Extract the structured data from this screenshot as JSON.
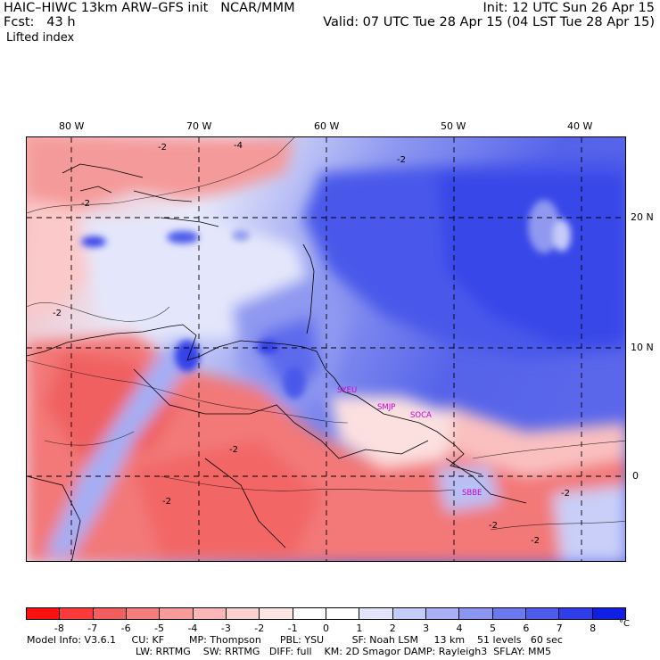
{
  "header": {
    "left_line1": "HAIC–HIWC 13km ARW–GFS init   NCAR/MMM",
    "left_line2": "Fcst:   43 h",
    "left_line3": "Lifted index",
    "right_line1": "Init: 12 UTC Sun 26 Apr 15",
    "right_line2": "Valid: 07 UTC Tue 28 Apr 15 (04 LST Tue 28 Apr 15)"
  },
  "map": {
    "longitude_labels": [
      "80 W",
      "70 W",
      "60 W",
      "50 W",
      "40 W"
    ],
    "latitude_labels": [
      "20 N",
      "10 N",
      "0"
    ],
    "contour_labels": [
      "-2",
      "-4",
      "-2",
      "-2",
      "-2",
      "-2",
      "-2",
      "-2",
      "-2",
      "-2"
    ],
    "stations": [
      "SYEU",
      "SMJP",
      "SOCA",
      "SBBE"
    ],
    "colors": {
      "ocean_high": "#3a4ef0",
      "mid": "#ffffff",
      "land_low": "#f26b6b",
      "grid": "#000000",
      "station": "#cc00cc"
    }
  },
  "colorbar": {
    "colors": [
      "#ff1010",
      "#ff3a3a",
      "#f25e5e",
      "#f57d7d",
      "#f99a9a",
      "#fbb7b7",
      "#fdd0d0",
      "#fee6e6",
      "#ffffff",
      "#ffffff",
      "#e3e6fb",
      "#c6ccf8",
      "#a9b1f4",
      "#8a95f1",
      "#6b79ee",
      "#4e5ceb",
      "#2f3ee8",
      "#0f1fe4"
    ],
    "labels": [
      "-8",
      "-7",
      "-6",
      "-5",
      "-4",
      "-3",
      "-2",
      "-1",
      "0",
      "1",
      "2",
      "3",
      "4",
      "5",
      "6",
      "7",
      "8"
    ],
    "unit": "°C"
  },
  "footer": {
    "line1": "Model Info: V3.6.1     CU: KF        MP: Thompson      PBL: YSU         SF: Noah LSM     13 km    51 levels   60 sec",
    "line2": "LW: RRTMG    SW: RRTMG   DIFF: full    KM: 2D Smagor DAMP: Rayleigh3  SFLAY: MM5"
  }
}
